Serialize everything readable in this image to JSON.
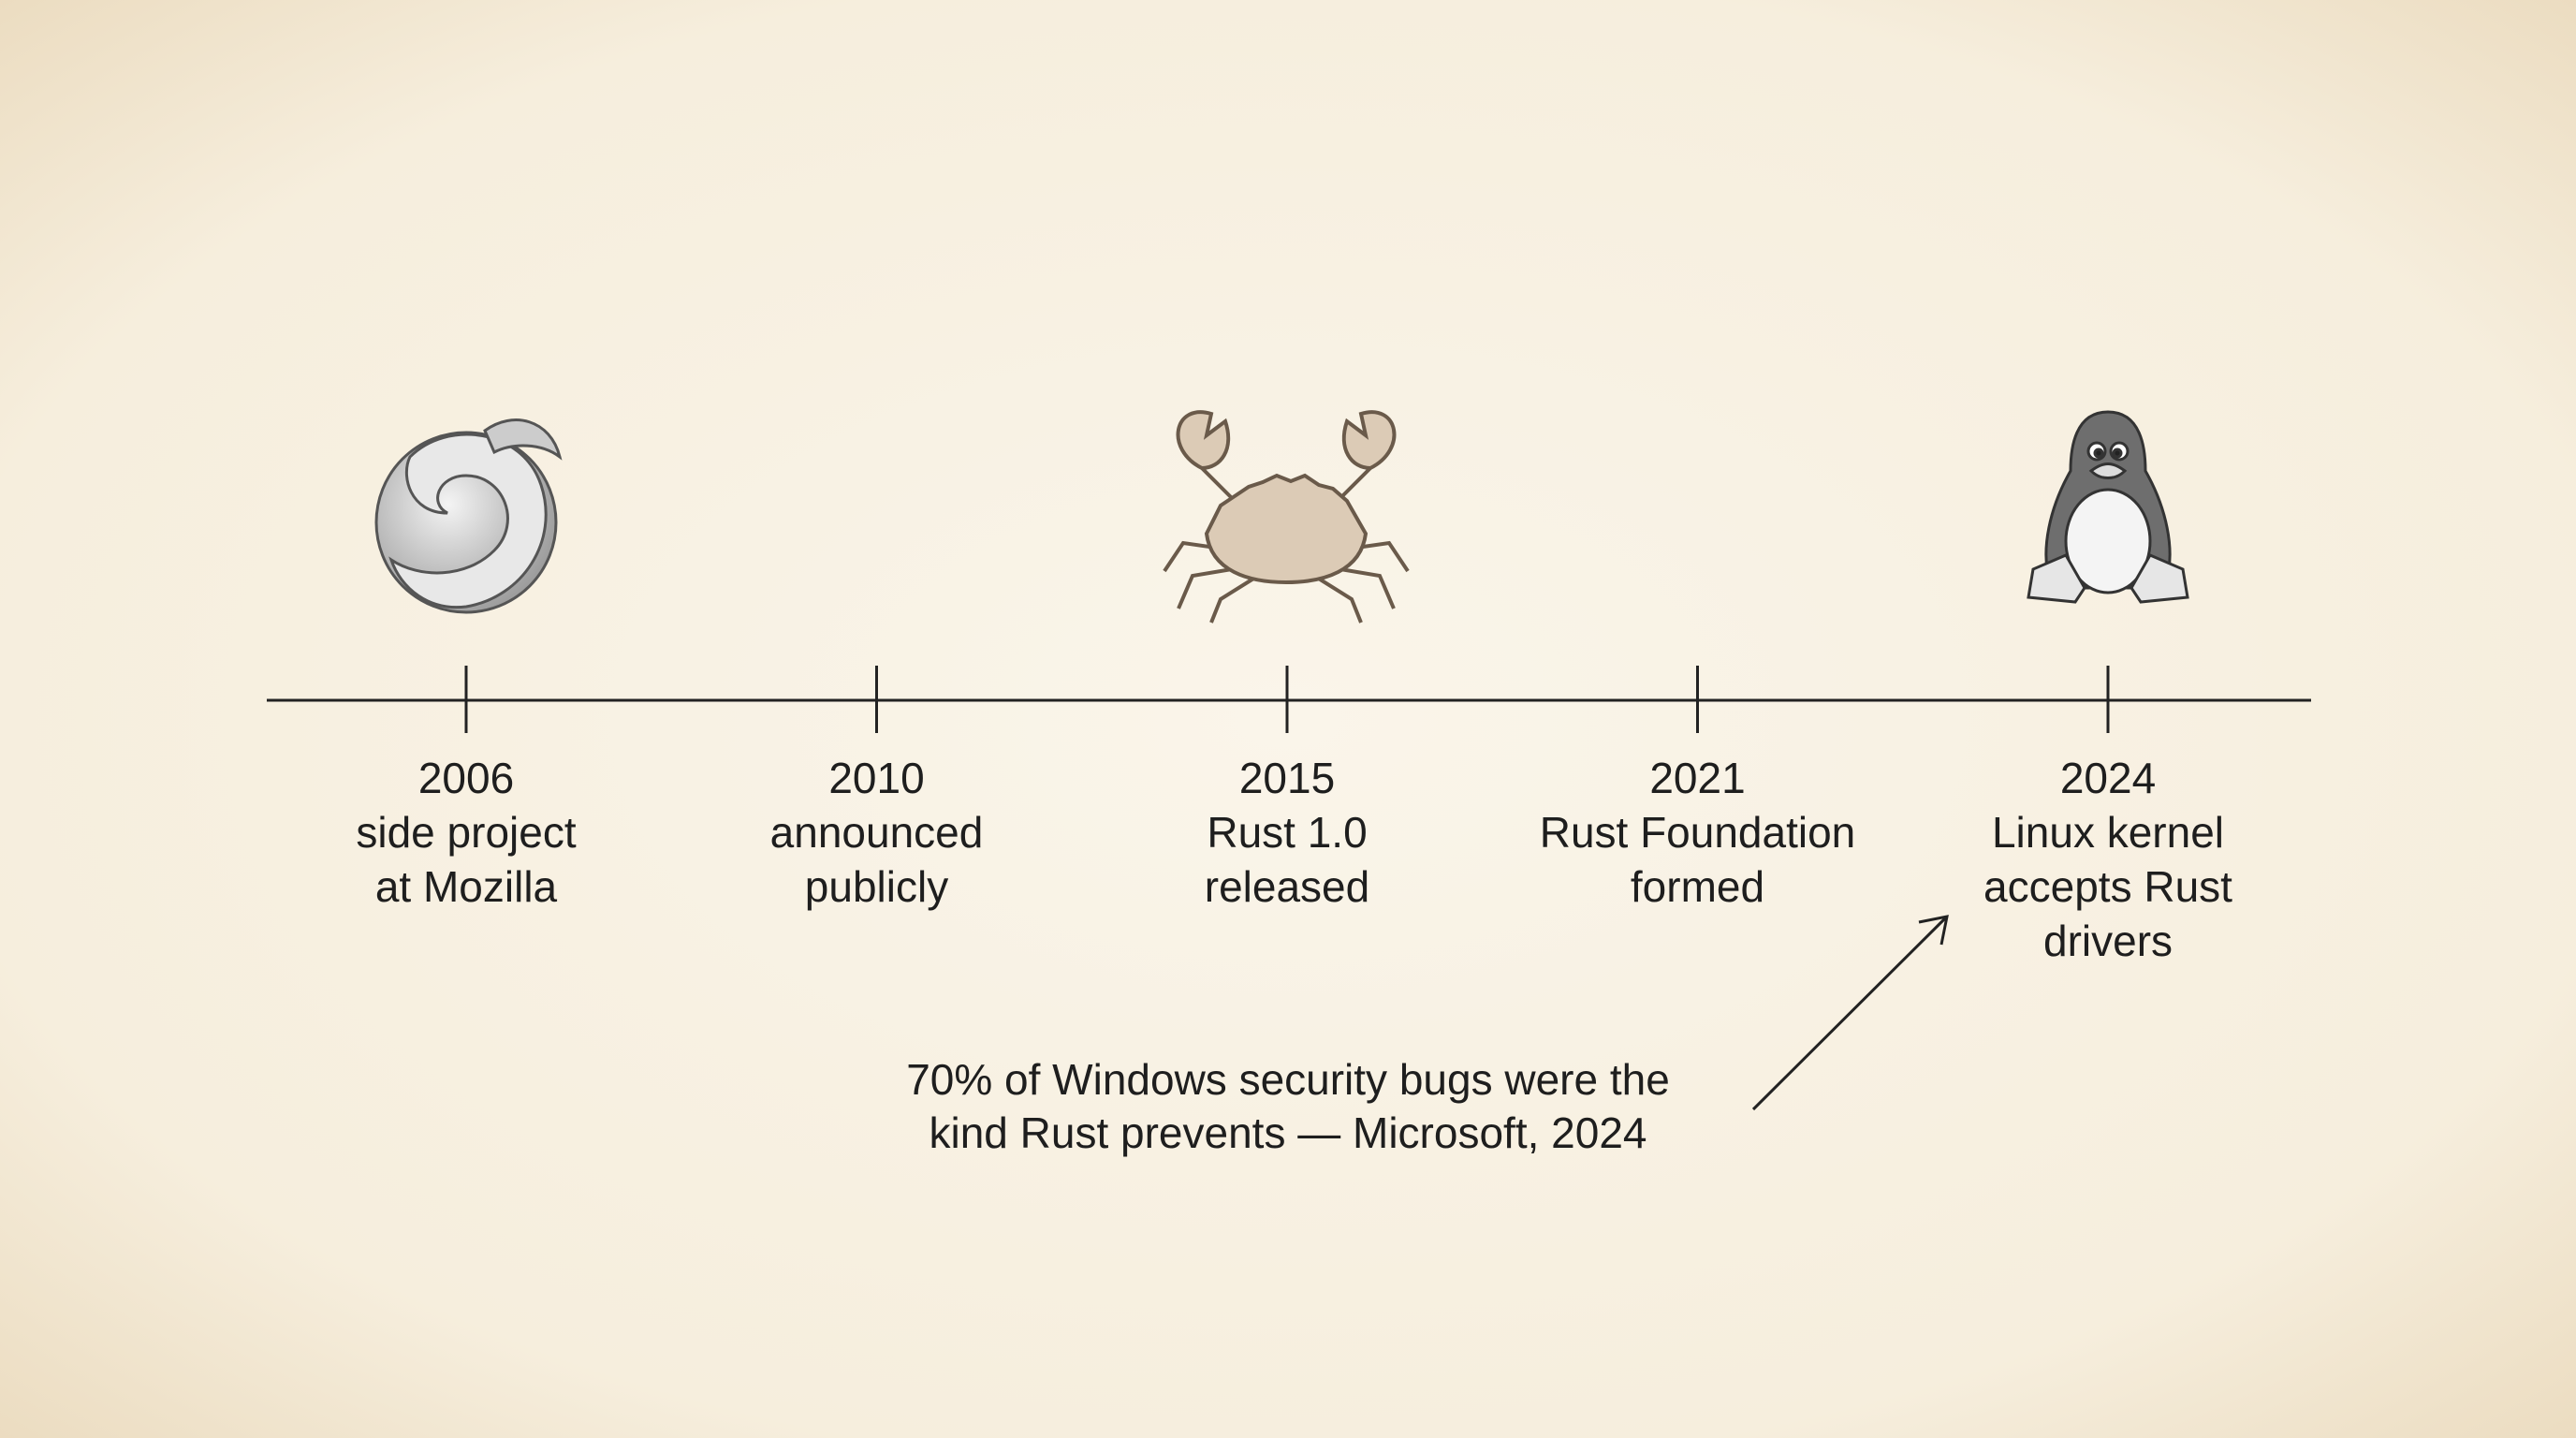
{
  "events": [
    {
      "year": "2006",
      "lines": [
        "side project",
        "at Mozilla"
      ]
    },
    {
      "year": "2010",
      "lines": [
        "announced",
        "publicly"
      ]
    },
    {
      "year": "2015",
      "lines": [
        "Rust 1.0",
        "released"
      ]
    },
    {
      "year": "2021",
      "lines": [
        "Rust Foundation",
        "formed"
      ]
    },
    {
      "year": "2024",
      "lines": [
        "Linux kernel",
        "accepts Rust",
        "drivers"
      ]
    }
  ],
  "annotation": {
    "lines": [
      "70% of Windows security bugs were the",
      "kind Rust prevents — Microsoft, 2024"
    ]
  }
}
